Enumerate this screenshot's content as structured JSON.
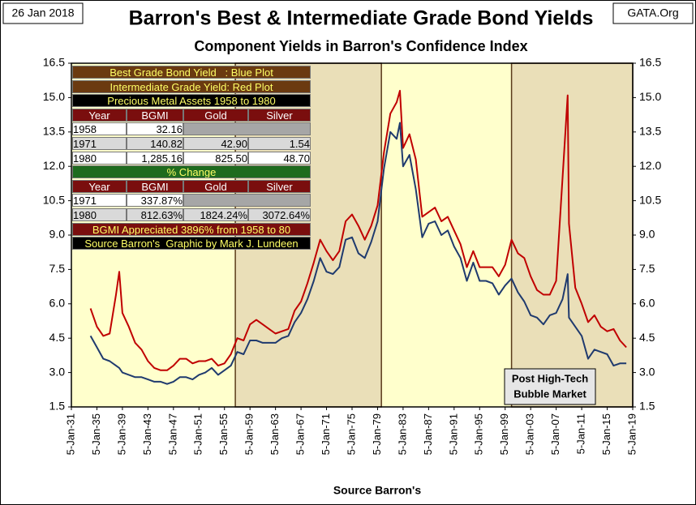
{
  "chart_data": {
    "type": "line",
    "title": "Barron's Best & Intermediate Grade Bond Yields",
    "subtitle": "Component Yields in Barron's Confidence Index",
    "date_note": "26 Jan 2018",
    "source_note": "GATA.Org",
    "x_label": "Source Barron's",
    "annotation": [
      "Post High-Tech",
      "Bubble Market"
    ],
    "shaded_ranges": [
      [
        1956.7,
        1979.6
      ],
      [
        2000,
        2019
      ]
    ],
    "xlim": [
      1931,
      2019
    ],
    "xticks": [
      {
        "value": 1931,
        "label": "5-Jan-31"
      },
      {
        "value": 1935,
        "label": "5-Jan-35"
      },
      {
        "value": 1939,
        "label": "5-Jan-39"
      },
      {
        "value": 1943,
        "label": "5-Jan-43"
      },
      {
        "value": 1947,
        "label": "5-Jan-47"
      },
      {
        "value": 1951,
        "label": "5-Jan-51"
      },
      {
        "value": 1955,
        "label": "5-Jan-55"
      },
      {
        "value": 1959,
        "label": "5-Jan-59"
      },
      {
        "value": 1963,
        "label": "5-Jan-63"
      },
      {
        "value": 1967,
        "label": "5-Jan-67"
      },
      {
        "value": 1971,
        "label": "5-Jan-71"
      },
      {
        "value": 1975,
        "label": "5-Jan-75"
      },
      {
        "value": 1979,
        "label": "5-Jan-79"
      },
      {
        "value": 1983,
        "label": "5-Jan-83"
      },
      {
        "value": 1987,
        "label": "5-Jan-87"
      },
      {
        "value": 1991,
        "label": "5-Jan-91"
      },
      {
        "value": 1995,
        "label": "5-Jan-95"
      },
      {
        "value": 1999,
        "label": "5-Jan-99"
      },
      {
        "value": 2003,
        "label": "5-Jan-03"
      },
      {
        "value": 2007,
        "label": "5-Jan-07"
      },
      {
        "value": 2011,
        "label": "5-Jan-11"
      },
      {
        "value": 2015,
        "label": "5-Jan-15"
      },
      {
        "value": 2019,
        "label": "5-Jan-19"
      }
    ],
    "ylim": [
      1.5,
      16.5
    ],
    "yticks": [
      {
        "value": 1.5,
        "label": "1.5"
      },
      {
        "value": 3,
        "label": "3.0"
      },
      {
        "value": 4.5,
        "label": "4.5"
      },
      {
        "value": 6,
        "label": "6.0"
      },
      {
        "value": 7.5,
        "label": "7.5"
      },
      {
        "value": 9,
        "label": "9.0"
      },
      {
        "value": 10.5,
        "label": "10.5"
      },
      {
        "value": 12,
        "label": "12.0"
      },
      {
        "value": 13.5,
        "label": "13.5"
      },
      {
        "value": 15,
        "label": "15.0"
      },
      {
        "value": 16.5,
        "label": "16.5"
      }
    ],
    "x": [
      1934,
      1935,
      1936,
      1937,
      1938,
      1938.5,
      1939,
      1940,
      1941,
      1942,
      1943,
      1944,
      1945,
      1946,
      1947,
      1948,
      1949,
      1950,
      1951,
      1952,
      1953,
      1954,
      1955,
      1956,
      1957,
      1958,
      1959,
      1960,
      1961,
      1962,
      1963,
      1964,
      1965,
      1966,
      1967,
      1968,
      1969,
      1970,
      1971,
      1972,
      1973,
      1974,
      1975,
      1976,
      1977,
      1978,
      1979,
      1980,
      1981,
      1982,
      1982.5,
      1983,
      1984,
      1985,
      1986,
      1987,
      1988,
      1989,
      1990,
      1991,
      1992,
      1993,
      1994,
      1995,
      1996,
      1997,
      1998,
      1999,
      2000,
      2001,
      2002,
      2003,
      2004,
      2005,
      2006,
      2007,
      2008,
      2008.8,
      2009,
      2010,
      2011,
      2012,
      2013,
      2014,
      2015,
      2016,
      2017,
      2018
    ],
    "series": [
      {
        "name": "Intermediate Grade Yield",
        "color": "#c00000",
        "values": [
          5.8,
          5.0,
          4.6,
          4.7,
          6.4,
          7.4,
          5.6,
          5.0,
          4.3,
          4.0,
          3.5,
          3.2,
          3.1,
          3.1,
          3.3,
          3.6,
          3.6,
          3.4,
          3.5,
          3.5,
          3.6,
          3.3,
          3.4,
          3.8,
          4.5,
          4.4,
          5.1,
          5.3,
          5.1,
          4.9,
          4.7,
          4.8,
          4.9,
          5.7,
          6.1,
          6.9,
          7.8,
          8.8,
          8.3,
          7.9,
          8.3,
          9.6,
          9.9,
          9.4,
          8.8,
          9.4,
          10.3,
          12.6,
          14.3,
          14.8,
          15.3,
          12.8,
          13.4,
          12.3,
          9.8,
          10.0,
          10.2,
          9.6,
          9.8,
          9.2,
          8.6,
          7.6,
          8.3,
          7.6,
          7.6,
          7.6,
          7.2,
          7.7,
          8.8,
          8.2,
          8.0,
          7.2,
          6.6,
          6.4,
          6.4,
          7.0,
          11.5,
          15.1,
          9.5,
          6.7,
          6.0,
          5.2,
          5.5,
          5.0,
          4.8,
          4.9,
          4.4,
          4.1
        ]
      },
      {
        "name": "Best Grade Bond Yield",
        "color": "#1f3a6e",
        "values": [
          4.6,
          4.1,
          3.6,
          3.5,
          3.3,
          3.2,
          3.0,
          2.9,
          2.8,
          2.8,
          2.7,
          2.6,
          2.6,
          2.5,
          2.6,
          2.8,
          2.8,
          2.7,
          2.9,
          3.0,
          3.2,
          2.9,
          3.1,
          3.3,
          3.9,
          3.8,
          4.4,
          4.4,
          4.3,
          4.3,
          4.3,
          4.5,
          4.6,
          5.2,
          5.6,
          6.2,
          7.0,
          8.0,
          7.4,
          7.3,
          7.6,
          8.8,
          8.9,
          8.2,
          8.0,
          8.7,
          9.6,
          11.9,
          13.5,
          13.2,
          13.9,
          12.0,
          12.5,
          11.0,
          8.9,
          9.5,
          9.6,
          9.0,
          9.2,
          8.5,
          8.0,
          7.0,
          7.8,
          7.0,
          7.0,
          6.9,
          6.4,
          6.8,
          7.1,
          6.5,
          6.1,
          5.5,
          5.4,
          5.1,
          5.5,
          5.6,
          6.2,
          7.3,
          5.4,
          5.0,
          4.6,
          3.6,
          4.0,
          3.9,
          3.8,
          3.3,
          3.4,
          3.4
        ]
      }
    ],
    "info_panel": {
      "notes": [
        "Best Grade Bond Yield   : Blue Plot",
        "Intermediate Grade Yield: Red Plot"
      ],
      "heading1": "Precious Metal Assets 1958 to 1980",
      "header1": [
        "Year",
        "BGMI",
        "Gold",
        "Silver"
      ],
      "rows1": [
        [
          "1958",
          "32.16"
        ],
        [
          "1971",
          "140.82",
          "42.90",
          "1.54"
        ],
        [
          "1980",
          "1,285.16",
          "825.50",
          "48.70"
        ]
      ],
      "heading2": "% Change",
      "header2": [
        "Year",
        "BGMI",
        "Gold",
        "Silver"
      ],
      "rows2": [
        [
          "1971",
          "337.87%"
        ],
        [
          "1980",
          "812.63%",
          "1824.24%",
          "3072.64%"
        ]
      ],
      "footer": [
        "BGMI Appreciated 3896% from 1958 to 80",
        "Source Barron's  Graphic by Mark J. Lundeen"
      ]
    }
  }
}
